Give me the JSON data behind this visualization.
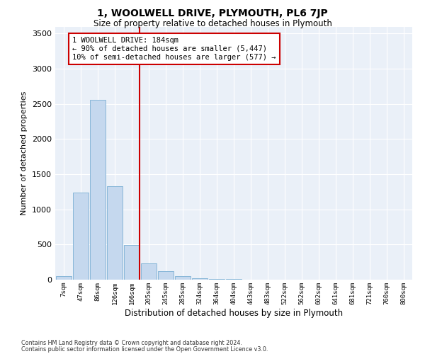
{
  "title": "1, WOOLWELL DRIVE, PLYMOUTH, PL6 7JP",
  "subtitle": "Size of property relative to detached houses in Plymouth",
  "xlabel": "Distribution of detached houses by size in Plymouth",
  "ylabel": "Number of detached properties",
  "bar_color": "#c5d8ee",
  "bar_edge_color": "#7aafd4",
  "background_color": "#eaf0f8",
  "grid_color": "#ffffff",
  "bins": [
    "7sqm",
    "47sqm",
    "86sqm",
    "126sqm",
    "166sqm",
    "205sqm",
    "245sqm",
    "285sqm",
    "324sqm",
    "364sqm",
    "404sqm",
    "443sqm",
    "483sqm",
    "522sqm",
    "562sqm",
    "602sqm",
    "641sqm",
    "681sqm",
    "721sqm",
    "760sqm",
    "800sqm"
  ],
  "values": [
    50,
    1240,
    2560,
    1330,
    490,
    230,
    120,
    50,
    25,
    15,
    10,
    5,
    0,
    0,
    0,
    0,
    0,
    0,
    0,
    0,
    0
  ],
  "vline_bin": 4,
  "vline_color": "#cc0000",
  "annotation_text": "1 WOOLWELL DRIVE: 184sqm\n← 90% of detached houses are smaller (5,447)\n10% of semi-detached houses are larger (577) →",
  "annotation_box_color": "#ffffff",
  "annotation_box_edge": "#cc0000",
  "ylim": [
    0,
    3600
  ],
  "yticks": [
    0,
    500,
    1000,
    1500,
    2000,
    2500,
    3000,
    3500
  ],
  "footnote1": "Contains HM Land Registry data © Crown copyright and database right 2024.",
  "footnote2": "Contains public sector information licensed under the Open Government Licence v3.0.",
  "fig_facecolor": "#ffffff",
  "title_fontsize": 10,
  "subtitle_fontsize": 8.5,
  "ylabel_fontsize": 8,
  "xlabel_fontsize": 8.5
}
